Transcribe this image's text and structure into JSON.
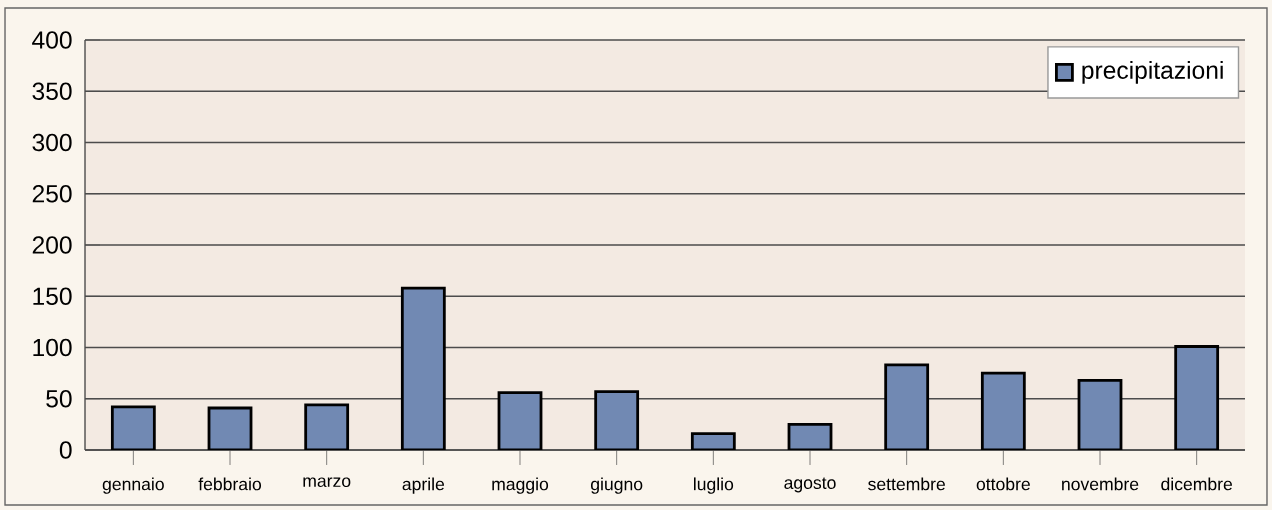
{
  "chart_data": {
    "type": "bar",
    "categories": [
      "gennaio",
      "febbraio",
      "marzo",
      "aprile",
      "maggio",
      "giugno",
      "luglio",
      "agosto",
      "settembre",
      "ottobre",
      "novembre",
      "dicembre"
    ],
    "series": [
      {
        "name": "precipitazioni",
        "color": "#7189b3",
        "values": [
          42,
          41,
          44,
          158,
          56,
          57,
          16,
          25,
          83,
          75,
          68,
          101
        ]
      }
    ],
    "ylim": [
      0,
      400
    ],
    "yticks": [
      0,
      50,
      100,
      150,
      200,
      250,
      300,
      350,
      400
    ],
    "grid": "y",
    "legend": "top right"
  }
}
